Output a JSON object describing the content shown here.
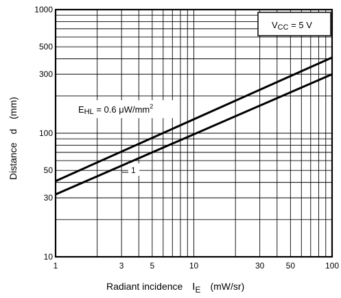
{
  "chart_data": {
    "type": "line",
    "x_scale": "log",
    "y_scale": "log",
    "xlim": [
      1,
      100
    ],
    "ylim": [
      10,
      1000
    ],
    "grid": true,
    "xlabel": {
      "text": "Radiant incidence",
      "symbol_main": "I",
      "symbol_sub": "E",
      "unit": "(mW/sr)"
    },
    "ylabel": {
      "text": "Distance",
      "symbol": "d",
      "unit": "(mm)"
    },
    "x_ticks": [
      {
        "value": 1,
        "label": "1"
      },
      {
        "value": 3,
        "label": "3"
      },
      {
        "value": 5,
        "label": "5"
      },
      {
        "value": 10,
        "label": "10"
      },
      {
        "value": 30,
        "label": "30"
      },
      {
        "value": 50,
        "label": "50"
      },
      {
        "value": 100,
        "label": "100"
      }
    ],
    "y_ticks": [
      {
        "value": 10,
        "label": "10"
      },
      {
        "value": 30,
        "label": "30"
      },
      {
        "value": 50,
        "label": "50"
      },
      {
        "value": 100,
        "label": "100"
      },
      {
        "value": 300,
        "label": "300"
      },
      {
        "value": 500,
        "label": "500"
      },
      {
        "value": 1000,
        "label": "1000"
      }
    ],
    "series": [
      {
        "label": {
          "main": "E",
          "sub": "HL",
          "rest": " = 0.6 μW/mm",
          "sup": "2"
        },
        "x": [
          1,
          100
        ],
        "y": [
          41,
          410
        ]
      },
      {
        "label": {
          "main": "1"
        },
        "x": [
          1,
          100
        ],
        "y": [
          32,
          300
        ]
      }
    ],
    "annotation": {
      "main": "V",
      "sub": "CC",
      "rest": " = 5 V"
    }
  }
}
